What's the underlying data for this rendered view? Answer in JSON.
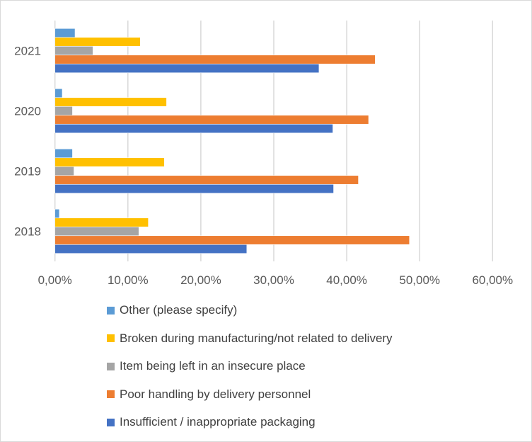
{
  "chart_data": {
    "type": "bar",
    "orientation": "horizontal",
    "categories": [
      "2018",
      "2019",
      "2020",
      "2021"
    ],
    "xlim": [
      0,
      60
    ],
    "x_ticks": [
      "0,00%",
      "10,00%",
      "20,00%",
      "30,00%",
      "40,00%",
      "50,00%",
      "60,00%"
    ],
    "grid": true,
    "legend_position": "bottom",
    "series": [
      {
        "name": "Insufficient / inappropriate packaging",
        "color": "#4472C4",
        "values": [
          26.3,
          38.2,
          38.1,
          36.2
        ]
      },
      {
        "name": "Poor handling by delivery personnel",
        "color": "#ED7D31",
        "values": [
          48.6,
          41.6,
          43.0,
          43.9
        ]
      },
      {
        "name": "Item being left in an insecure place",
        "color": "#A5A5A5",
        "values": [
          11.5,
          2.6,
          2.4,
          5.2
        ]
      },
      {
        "name": "Broken during manufacturing/not related to delivery",
        "color": "#FFC000",
        "values": [
          12.8,
          15.0,
          15.3,
          11.7
        ]
      },
      {
        "name": "Other (please specify)",
        "color": "#5B9BD5",
        "values": [
          0.6,
          2.4,
          1.0,
          2.75
        ]
      }
    ]
  }
}
